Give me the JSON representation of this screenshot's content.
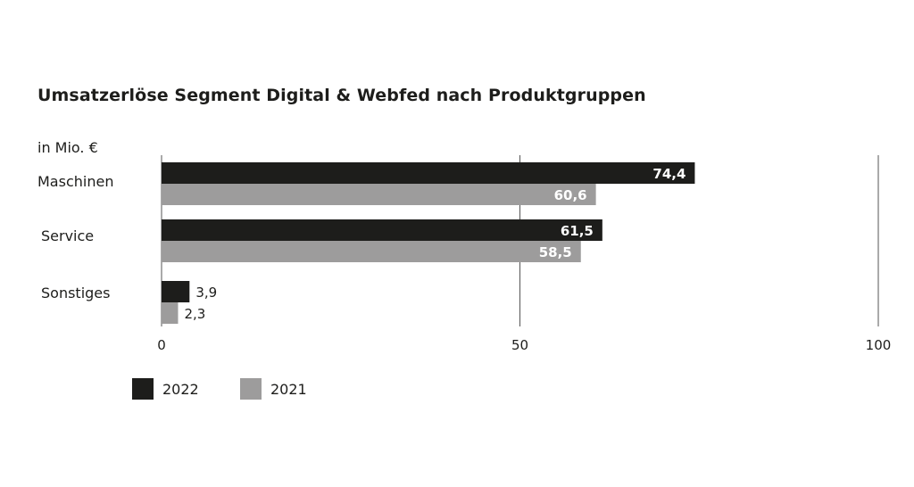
{
  "colors": {
    "series_2022": "#1d1d1b",
    "series_2021": "#9d9c9c",
    "grid": "#555555",
    "text": "#1d1d1b",
    "label_inside": "#ffffff"
  },
  "chart_data": {
    "type": "bar",
    "orientation": "horizontal",
    "title": "Umsatzerlöse Segment Digital & Webfed nach Produktgruppen",
    "unit_label": "in Mio. €",
    "categories": [
      "Maschinen",
      "Service",
      "Sonstiges"
    ],
    "series": [
      {
        "name": "2022",
        "values": [
          74.4,
          61.5,
          3.9
        ],
        "labels": [
          "74,4",
          "61,5",
          "3,9"
        ]
      },
      {
        "name": "2021",
        "values": [
          60.6,
          58.5,
          2.3
        ],
        "labels": [
          "60,6",
          "58,5",
          "2,3"
        ]
      }
    ],
    "xlim": [
      0,
      100
    ],
    "xticks": [
      0,
      50,
      100
    ],
    "xtick_labels": [
      "0",
      "50",
      "100"
    ],
    "grid": true,
    "legend_position": "bottom-left"
  }
}
